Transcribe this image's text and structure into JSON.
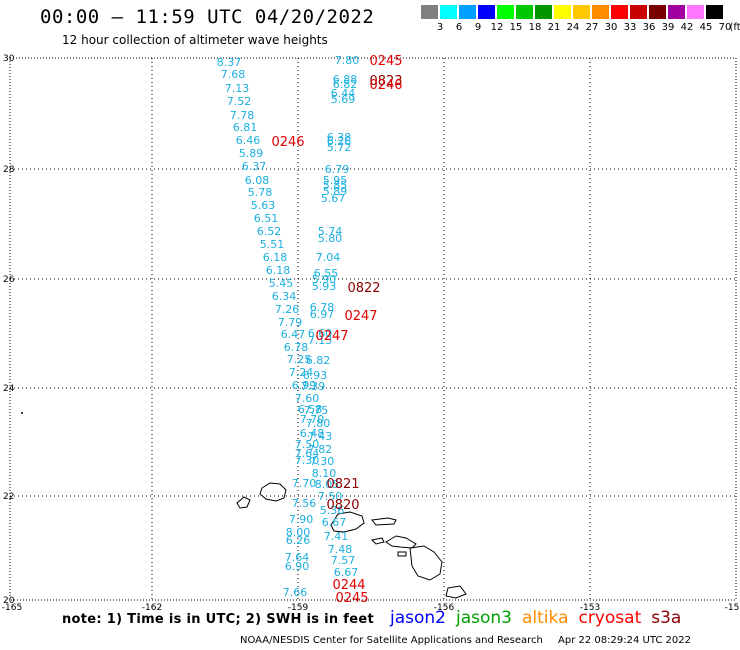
{
  "title": "00:00 – 11:59 UTC 04/20/2022",
  "subtitle": "12 hour collection of altimeter wave heights",
  "color_scale": {
    "unit": "(ft)",
    "bins": [
      {
        "label": "3",
        "color": "#808080"
      },
      {
        "label": "6",
        "color": "#00ffff"
      },
      {
        "label": "9",
        "color": "#00a0ff"
      },
      {
        "label": "12",
        "color": "#0000ff"
      },
      {
        "label": "15",
        "color": "#00ff00"
      },
      {
        "label": "18",
        "color": "#00c800"
      },
      {
        "label": "21",
        "color": "#009600"
      },
      {
        "label": "24",
        "color": "#ffff00"
      },
      {
        "label": "27",
        "color": "#ffc800"
      },
      {
        "label": "30",
        "color": "#ff8c00"
      },
      {
        "label": "33",
        "color": "#ff0000"
      },
      {
        "label": "36",
        "color": "#c80000"
      },
      {
        "label": "39",
        "color": "#780000"
      },
      {
        "label": "42",
        "color": "#a000a0"
      },
      {
        "label": "45",
        "color": "#ff78ff"
      },
      {
        "label": "70",
        "color": "#000000"
      }
    ]
  },
  "axes": {
    "lat_labels": [
      "30",
      "28",
      "26",
      "24",
      "22",
      "20"
    ],
    "lon_labels": [
      "-165",
      "-162",
      "-159",
      "-156",
      "-153",
      "-15"
    ]
  },
  "observations": [
    {
      "t": "8.37",
      "c": "cy"
    },
    {
      "t": "7.68",
      "c": "cy"
    },
    {
      "t": "7.13",
      "c": "cy"
    },
    {
      "t": "7.52",
      "c": "cy"
    },
    {
      "t": "7.78",
      "c": "cy"
    },
    {
      "t": "6.81",
      "c": "cy"
    },
    {
      "t": "6.46",
      "c": "cy"
    },
    {
      "t": "5.89",
      "c": "cy"
    },
    {
      "t": "6.37",
      "c": "cy"
    },
    {
      "t": "6.08",
      "c": "cy"
    },
    {
      "t": "5.78",
      "c": "cy"
    },
    {
      "t": "5.63",
      "c": "cy"
    },
    {
      "t": "6.51",
      "c": "cy"
    },
    {
      "t": "6.52",
      "c": "cy"
    },
    {
      "t": "5.51",
      "c": "cy"
    },
    {
      "t": "6.18",
      "c": "cy"
    },
    {
      "t": "6.18",
      "c": "cy"
    },
    {
      "t": "5.45",
      "c": "cy"
    },
    {
      "t": "6.34",
      "c": "cy"
    },
    {
      "t": "7.26",
      "c": "cy"
    },
    {
      "t": "7.79",
      "c": "cy"
    },
    {
      "t": "6.47",
      "c": "cy"
    },
    {
      "t": "6.78",
      "c": "cy"
    },
    {
      "t": "7.25",
      "c": "cy"
    },
    {
      "t": "7.24",
      "c": "cy"
    },
    {
      "t": "6.99",
      "c": "cy"
    },
    {
      "t": "7.60",
      "c": "cy"
    },
    {
      "t": "6.58",
      "c": "cy"
    },
    {
      "t": "7.70",
      "c": "cy"
    },
    {
      "t": "6.48",
      "c": "cy"
    },
    {
      "t": "7.50",
      "c": "cy"
    },
    {
      "t": "7.64",
      "c": "cy"
    },
    {
      "t": "7.30",
      "c": "cy"
    },
    {
      "t": "7.70",
      "c": "cy"
    },
    {
      "t": "7.56",
      "c": "cy"
    },
    {
      "t": "7.90",
      "c": "cy"
    },
    {
      "t": "8.00",
      "c": "cy"
    },
    {
      "t": "6.26",
      "c": "cy"
    },
    {
      "t": "7.64",
      "c": "cy"
    },
    {
      "t": "6.90",
      "c": "cy"
    },
    {
      "t": "7.66",
      "c": "cy"
    },
    {
      "t": "7.80",
      "c": "cy"
    },
    {
      "t": "6.88",
      "c": "cy"
    },
    {
      "t": "6.82",
      "c": "cy"
    },
    {
      "t": "6.44",
      "c": "cy"
    },
    {
      "t": "5.69",
      "c": "cy"
    },
    {
      "t": "6.38",
      "c": "cy"
    },
    {
      "t": "6.26",
      "c": "cy"
    },
    {
      "t": "5.72",
      "c": "cy"
    },
    {
      "t": "6.79",
      "c": "cy"
    },
    {
      "t": "5.95",
      "c": "cy"
    },
    {
      "t": "5.85",
      "c": "cy"
    },
    {
      "t": "5.89",
      "c": "cy"
    },
    {
      "t": "5.67",
      "c": "cy"
    },
    {
      "t": "5.74",
      "c": "cy"
    },
    {
      "t": "5.80",
      "c": "cy"
    },
    {
      "t": "7.04",
      "c": "cy"
    },
    {
      "t": "6.55",
      "c": "cy"
    },
    {
      "t": "5.90",
      "c": "cy"
    },
    {
      "t": "5.93",
      "c": "cy"
    },
    {
      "t": "6.78",
      "c": "cy"
    },
    {
      "t": "6.97",
      "c": "cy"
    },
    {
      "t": "6.60",
      "c": "cy"
    },
    {
      "t": "7.13",
      "c": "cy"
    },
    {
      "t": "6.82",
      "c": "cy"
    },
    {
      "t": "6.93",
      "c": "cy"
    },
    {
      "t": "7.39",
      "c": "cy"
    },
    {
      "t": "7.75",
      "c": "cy"
    },
    {
      "t": "7.80",
      "c": "cy"
    },
    {
      "t": "7.43",
      "c": "cy"
    },
    {
      "t": "7.82",
      "c": "cy"
    },
    {
      "t": "7.30",
      "c": "cy"
    },
    {
      "t": "8.10",
      "c": "cy"
    },
    {
      "t": "8.05",
      "c": "cy"
    },
    {
      "t": "7.50",
      "c": "cy"
    },
    {
      "t": "5.36",
      "c": "cy"
    },
    {
      "t": "6.67",
      "c": "cy"
    },
    {
      "t": "7.41",
      "c": "cy"
    },
    {
      "t": "7.48",
      "c": "cy"
    },
    {
      "t": "7.57",
      "c": "cy"
    },
    {
      "t": "6.67",
      "c": "cy"
    },
    {
      "t": "0244",
      "c": "red"
    },
    {
      "t": "0245",
      "c": "red"
    },
    {
      "t": "0245",
      "c": "red"
    },
    {
      "t": "0823",
      "c": "dark"
    },
    {
      "t": "0246",
      "c": "red"
    },
    {
      "t": "0246",
      "c": "red"
    },
    {
      "t": "0822",
      "c": "dark"
    },
    {
      "t": "0247",
      "c": "red"
    },
    {
      "t": "0247",
      "c": "red"
    },
    {
      "t": "0821",
      "c": "dark"
    },
    {
      "t": "0820",
      "c": "dark"
    }
  ],
  "note": "note: 1) Time is in UTC; 2) SWH is in feet",
  "satellites": [
    {
      "name": "jason2",
      "color": "#0000ff"
    },
    {
      "name": "jason3",
      "color": "#00a000"
    },
    {
      "name": "altika",
      "color": "#ff8c00"
    },
    {
      "name": "cryosat",
      "color": "#ff0000"
    },
    {
      "name": "s3a",
      "color": "#8b0000"
    }
  ],
  "footer": {
    "org": "NOAA/NESDIS Center for Satellite Applications and Research",
    "timestamp": "Apr 22 08:29:24 UTC 2022"
  }
}
